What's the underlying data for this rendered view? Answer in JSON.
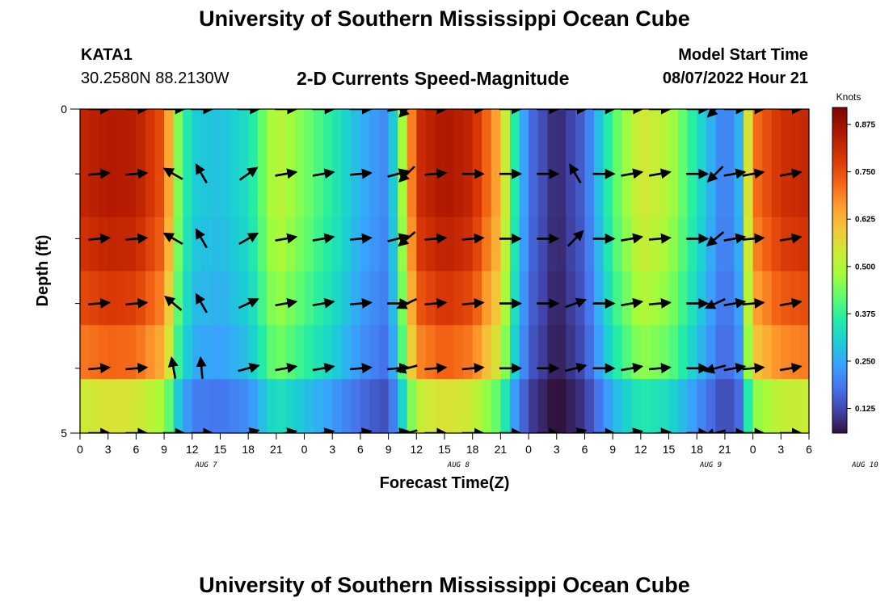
{
  "header": {
    "title": "University of Southern Mississippi Ocean Cube",
    "station_id": "KATA1",
    "station_coords": "30.2580N  88.2130W",
    "plot_title": "2-D Currents Speed-Magnitude",
    "model_start_label": "Model Start Time",
    "model_start_value": "08/07/2022 Hour 21"
  },
  "footer": {
    "title_repeat": "University of Southern Mississippi Ocean Cube"
  },
  "chart_data": {
    "type": "heatmap",
    "title": "2-D Currents Speed-Magnitude",
    "xlabel": "Forecast Time(Z)",
    "ylabel": "Depth (ft)",
    "x_tick_labels": [
      "0",
      "3",
      "6",
      "9",
      "12",
      "15",
      "18",
      "21",
      "0",
      "3",
      "6",
      "9",
      "12",
      "15",
      "18",
      "21",
      "0",
      "3",
      "6",
      "9",
      "12",
      "15",
      "18",
      "21",
      "0",
      "3",
      "6"
    ],
    "date_labels": [
      {
        "label": "AUG 7",
        "tick_index": 4.5
      },
      {
        "label": "AUG 8",
        "tick_index": 13.5
      },
      {
        "label": "AUG 9",
        "tick_index": 22.5
      },
      {
        "label": "AUG 10",
        "tick_index": 28
      }
    ],
    "x_range_hours": [
      0,
      78
    ],
    "y_range_ft": [
      0,
      5
    ],
    "y_ticks": [
      "0",
      "5"
    ],
    "depth_levels_ft": [
      0,
      1,
      2,
      3,
      4,
      5
    ],
    "colorbar": {
      "label": "Knots",
      "min": 0.06,
      "max": 0.92,
      "ticks": [
        "0.875",
        "0.750",
        "0.625",
        "0.500",
        "0.375",
        "0.250",
        "0.125"
      ],
      "tick_values": [
        0.875,
        0.75,
        0.625,
        0.5,
        0.375,
        0.25,
        0.125
      ]
    },
    "speed_profile_knots": [
      [
        0,
        0.82
      ],
      [
        3,
        0.85
      ],
      [
        6,
        0.84
      ],
      [
        9,
        0.74
      ],
      [
        10.5,
        0.45
      ],
      [
        12,
        0.3
      ],
      [
        15,
        0.28
      ],
      [
        18,
        0.33
      ],
      [
        21,
        0.52
      ],
      [
        24,
        0.44
      ],
      [
        27,
        0.36
      ],
      [
        30,
        0.26
      ],
      [
        33,
        0.2
      ],
      [
        34.5,
        0.48
      ],
      [
        36,
        0.8
      ],
      [
        39,
        0.86
      ],
      [
        42,
        0.82
      ],
      [
        45,
        0.62
      ],
      [
        46.5,
        0.36
      ],
      [
        48,
        0.18
      ],
      [
        51,
        0.08
      ],
      [
        54,
        0.16
      ],
      [
        57,
        0.4
      ],
      [
        60,
        0.55
      ],
      [
        63,
        0.5
      ],
      [
        66,
        0.34
      ],
      [
        69,
        0.18
      ],
      [
        70.5,
        0.26
      ],
      [
        72,
        0.7
      ],
      [
        75,
        0.8
      ],
      [
        78,
        0.82
      ]
    ],
    "depth_factors": [
      1.0,
      1.0,
      0.97,
      0.92,
      0.85,
      0.65
    ],
    "vector_times_hours": [
      2,
      6,
      10,
      13,
      18,
      22,
      26,
      30,
      34,
      35,
      38,
      42,
      46,
      50,
      53,
      56,
      59,
      62,
      66,
      68,
      70,
      72,
      76
    ],
    "vector_directions_deg": [
      [
        0,
        0,
        0,
        0,
        0,
        0,
        0,
        0,
        10,
        -135,
        0,
        0,
        0,
        0,
        0,
        0,
        0,
        0,
        0,
        -135,
        0,
        0,
        0
      ],
      [
        5,
        5,
        150,
        120,
        35,
        10,
        10,
        5,
        15,
        -135,
        5,
        0,
        0,
        0,
        120,
        0,
        10,
        10,
        0,
        -135,
        10,
        10,
        10
      ],
      [
        5,
        5,
        150,
        120,
        30,
        10,
        10,
        5,
        15,
        -140,
        5,
        5,
        0,
        0,
        45,
        0,
        10,
        5,
        0,
        -140,
        10,
        5,
        10
      ],
      [
        5,
        5,
        140,
        120,
        25,
        10,
        10,
        5,
        0,
        -155,
        5,
        5,
        0,
        0,
        20,
        0,
        10,
        5,
        0,
        -155,
        10,
        5,
        10
      ],
      [
        5,
        5,
        100,
        95,
        15,
        10,
        10,
        5,
        5,
        -165,
        5,
        5,
        0,
        0,
        15,
        0,
        10,
        5,
        0,
        -165,
        10,
        5,
        10
      ],
      [
        0,
        0,
        0,
        0,
        15,
        10,
        10,
        10,
        10,
        -165,
        0,
        0,
        0,
        0,
        15,
        0,
        10,
        5,
        0,
        -165,
        0,
        0,
        0
      ]
    ]
  }
}
